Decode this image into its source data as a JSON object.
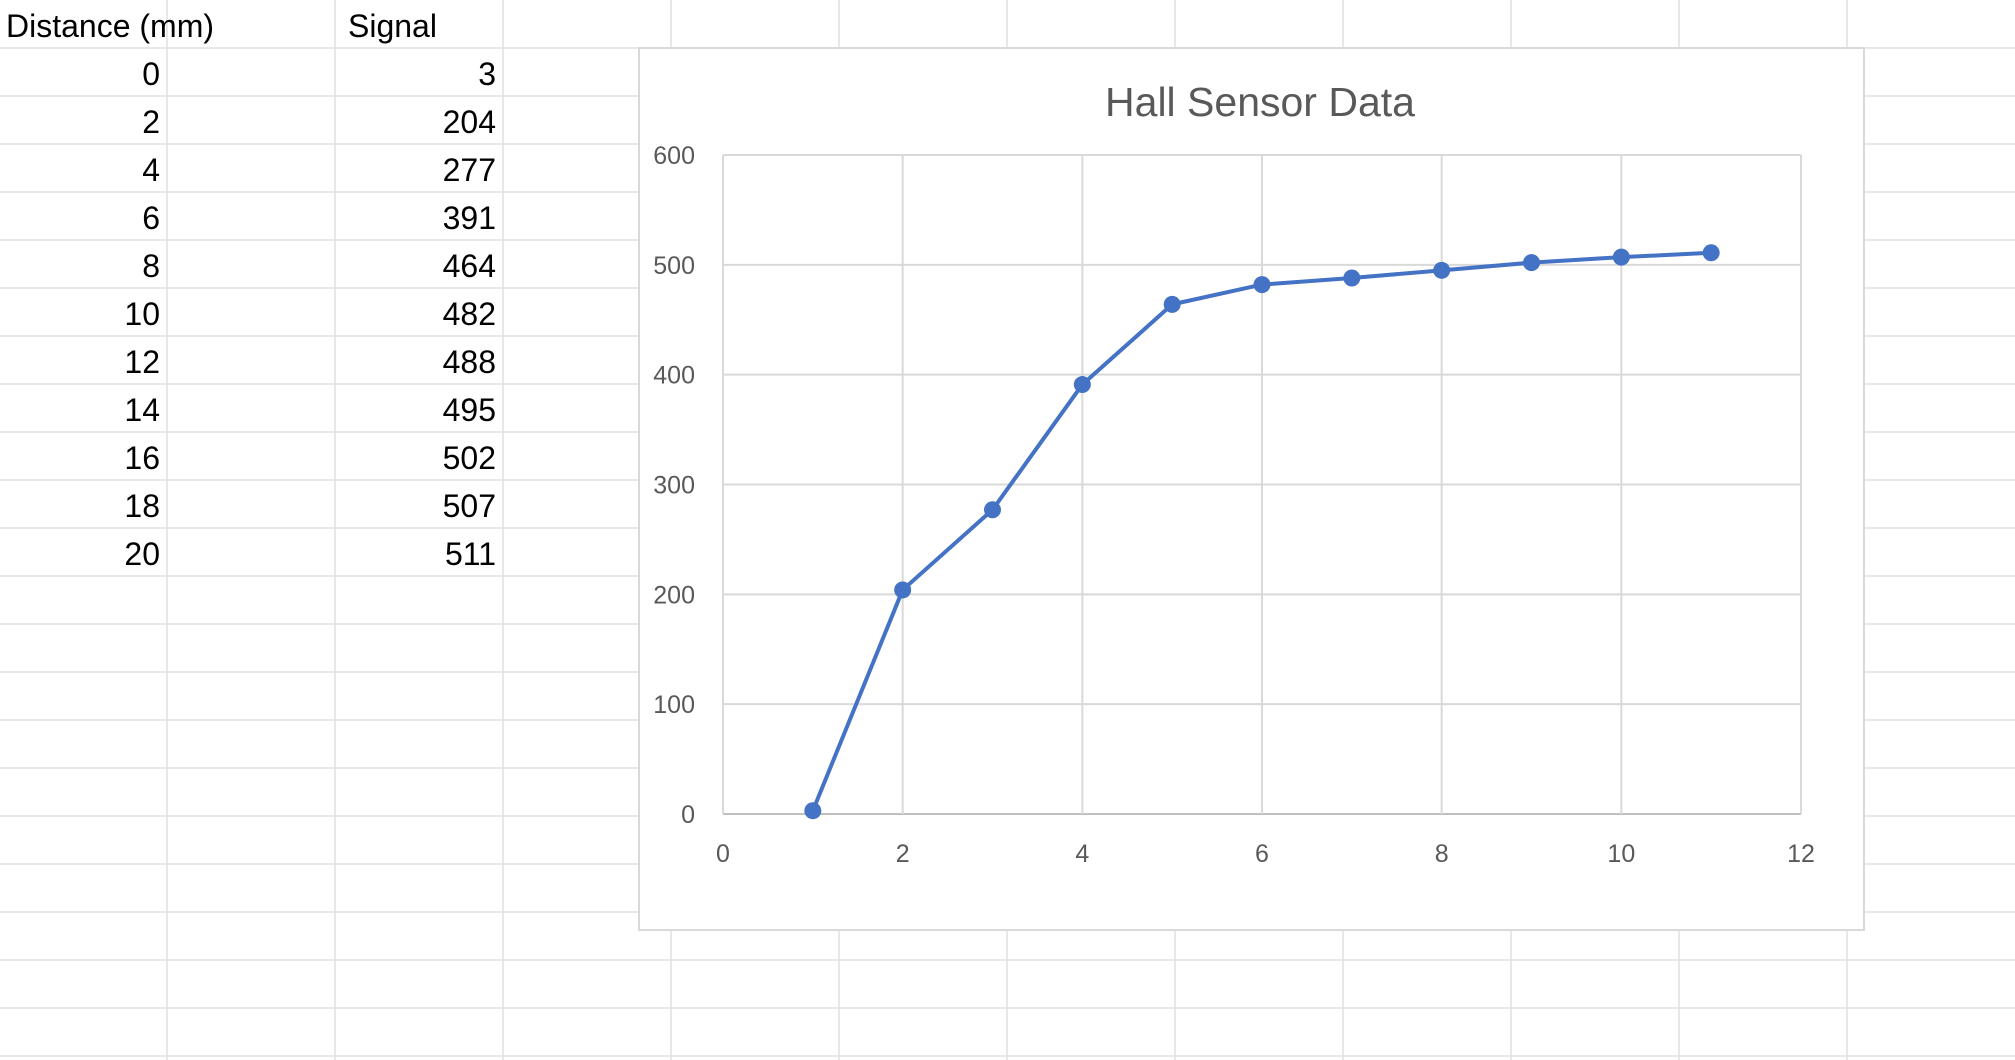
{
  "sheet": {
    "headers": {
      "col_a": "Distance (mm)",
      "col_b": "Signal"
    },
    "rows": [
      {
        "distance": "0",
        "signal": "3"
      },
      {
        "distance": "2",
        "signal": "204"
      },
      {
        "distance": "4",
        "signal": "277"
      },
      {
        "distance": "6",
        "signal": "391"
      },
      {
        "distance": "8",
        "signal": "464"
      },
      {
        "distance": "10",
        "signal": "482"
      },
      {
        "distance": "12",
        "signal": "488"
      },
      {
        "distance": "14",
        "signal": "495"
      },
      {
        "distance": "16",
        "signal": "502"
      },
      {
        "distance": "18",
        "signal": "507"
      },
      {
        "distance": "20",
        "signal": "511"
      }
    ]
  },
  "chart_data": {
    "type": "line",
    "title": "Hall Sensor Data",
    "xlabel": "",
    "ylabel": "",
    "xlim": [
      0,
      12
    ],
    "ylim": [
      0,
      600
    ],
    "x_ticks": [
      "0",
      "2",
      "4",
      "6",
      "8",
      "10",
      "12"
    ],
    "y_ticks": [
      "0",
      "100",
      "200",
      "300",
      "400",
      "500",
      "600"
    ],
    "grid": true,
    "legend": "none",
    "series": [
      {
        "x": [
          1,
          2,
          3,
          4,
          5,
          6,
          7,
          8,
          9,
          10,
          11
        ],
        "y": [
          3,
          204,
          277,
          391,
          464,
          482,
          488,
          495,
          502,
          507,
          511
        ],
        "color": "#4472c4",
        "marker": "circle"
      }
    ]
  },
  "colors": {
    "gridline": "#d9d9d9",
    "cellline": "#e1e1e1",
    "series": "#4472c4",
    "text": "#595959"
  }
}
